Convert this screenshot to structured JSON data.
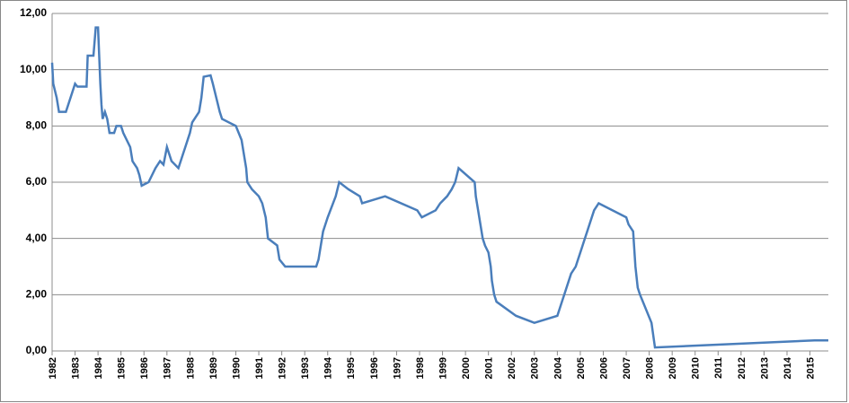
{
  "chart_data": {
    "type": "line",
    "x": [
      1982.0,
      1982.05,
      1982.2,
      1982.3,
      1982.6,
      1982.7,
      1982.9,
      1983.0,
      1983.1,
      1983.5,
      1983.55,
      1983.8,
      1983.85,
      1983.9,
      1984.0,
      1984.05,
      1984.1,
      1984.15,
      1984.2,
      1984.3,
      1984.4,
      1984.5,
      1984.7,
      1984.8,
      1985.0,
      1985.1,
      1985.4,
      1985.5,
      1985.7,
      1985.8,
      1985.9,
      1986.2,
      1986.5,
      1986.7,
      1986.85,
      1987.0,
      1987.2,
      1987.5,
      1987.7,
      1987.8,
      1987.9,
      1988.0,
      1988.1,
      1988.4,
      1988.5,
      1988.6,
      1988.9,
      1989.0,
      1989.15,
      1989.3,
      1989.4,
      1990.0,
      1990.25,
      1990.35,
      1990.45,
      1990.5,
      1990.7,
      1991.0,
      1991.15,
      1991.3,
      1991.4,
      1991.8,
      1991.9,
      1992.15,
      1993.5,
      1993.6,
      1993.7,
      1993.8,
      1994.0,
      1994.35,
      1994.5,
      1994.9,
      1995.4,
      1995.5,
      1996.5,
      1997.9,
      1998.1,
      1998.7,
      1998.9,
      1999.2,
      1999.4,
      1999.55,
      1999.7,
      2000.4,
      2000.45,
      2000.55,
      2000.65,
      2000.75,
      2000.85,
      2001.0,
      2001.1,
      2001.15,
      2001.25,
      2001.35,
      2002.2,
      2003.0,
      2004.0,
      2004.1,
      2004.2,
      2004.3,
      2004.4,
      2004.5,
      2004.6,
      2004.8,
      2004.9,
      2005.0,
      2005.1,
      2005.2,
      2005.3,
      2005.4,
      2005.5,
      2005.6,
      2005.8,
      2007.0,
      2007.1,
      2007.3,
      2007.4,
      2007.5,
      2007.6,
      2008.1,
      2008.25,
      2015.2,
      2015.8
    ],
    "series": [
      {
        "color": "#4a7ebb",
        "values": [
          10.25,
          9.5,
          9.0,
          8.5,
          8.5,
          8.75,
          9.25,
          9.5,
          9.4,
          9.4,
          10.5,
          10.5,
          11.0,
          11.5,
          11.5,
          10.5,
          9.5,
          8.75,
          8.25,
          8.5,
          8.25,
          7.75,
          7.75,
          8.0,
          8.0,
          7.75,
          7.25,
          6.75,
          6.5,
          6.25,
          5.875,
          6.0,
          6.5,
          6.75,
          6.625,
          7.25,
          6.75,
          6.5,
          7.0,
          7.25,
          7.5,
          7.75,
          8.125,
          8.5,
          9.0,
          9.75,
          9.8,
          9.5,
          9.0,
          8.5,
          8.25,
          8.0,
          7.5,
          7.0,
          6.5,
          6.0,
          5.75,
          5.5,
          5.25,
          4.75,
          4.0,
          3.75,
          3.25,
          3.0,
          3.0,
          3.25,
          3.75,
          4.25,
          4.75,
          5.5,
          6.0,
          5.75,
          5.5,
          5.25,
          5.5,
          5.0,
          4.75,
          5.0,
          5.25,
          5.5,
          5.75,
          6.0,
          6.5,
          6.0,
          5.5,
          5.0,
          4.5,
          4.0,
          3.75,
          3.5,
          3.0,
          2.5,
          2.0,
          1.75,
          1.25,
          1.0,
          1.25,
          1.5,
          1.75,
          2.0,
          2.25,
          2.5,
          2.75,
          3.0,
          3.25,
          3.5,
          3.75,
          4.0,
          4.25,
          4.5,
          4.75,
          5.0,
          5.25,
          4.75,
          4.5,
          4.25,
          3.0,
          2.25,
          2.0,
          1.0,
          0.125,
          0.375,
          0.375
        ]
      }
    ],
    "xlim": [
      1982,
      2015.8
    ],
    "xticks": [
      1982,
      1983,
      1984,
      1985,
      1986,
      1987,
      1988,
      1989,
      1990,
      1991,
      1992,
      1993,
      1994,
      1995,
      1996,
      1997,
      1998,
      1999,
      2000,
      2001,
      2002,
      2003,
      2004,
      2005,
      2006,
      2007,
      2008,
      2009,
      2010,
      2011,
      2012,
      2013,
      2014,
      2015
    ],
    "ylim": [
      0,
      12
    ],
    "yticks": [
      {
        "value": 0,
        "label": "0,00"
      },
      {
        "value": 2,
        "label": "2,00"
      },
      {
        "value": 4,
        "label": "4,00"
      },
      {
        "value": 6,
        "label": "6,00"
      },
      {
        "value": 8,
        "label": "8,00"
      },
      {
        "value": 10,
        "label": "10,00"
      },
      {
        "value": 12,
        "label": "12,00"
      }
    ],
    "grid": true
  }
}
